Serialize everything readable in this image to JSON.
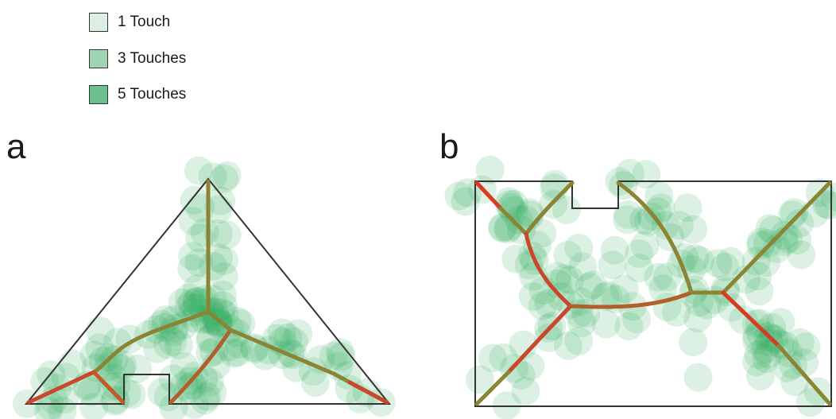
{
  "legend": {
    "items": [
      {
        "label": "1 Touch",
        "color": "#dcefe2"
      },
      {
        "label": "3 Touches",
        "color": "#9fd4b1"
      },
      {
        "label": "5 Touches",
        "color": "#6cc090"
      }
    ]
  },
  "panels": [
    {
      "label": "a"
    },
    {
      "label": "b"
    }
  ],
  "colors": {
    "outline": "#333333",
    "touch": "#2eaa5c",
    "skeleton_green": "#7a8a3a",
    "skeleton_red": "#d83a22"
  }
}
